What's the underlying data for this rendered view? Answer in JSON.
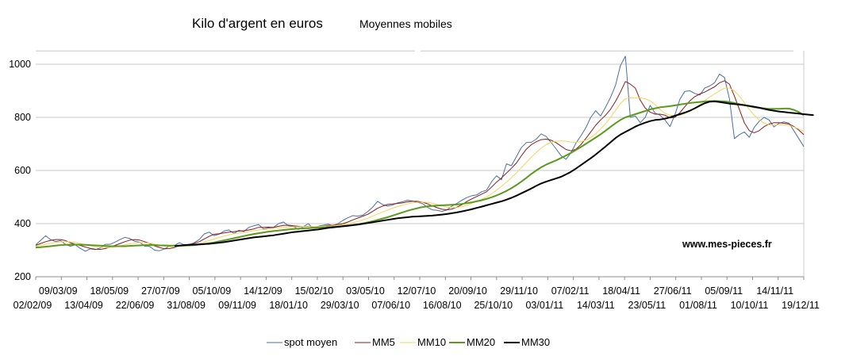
{
  "chart_data": {
    "type": "line",
    "title": "Kilo d'argent en euros",
    "subtitle": "Moyennes mobiles",
    "watermark": "www.mes-pieces.fr",
    "xlabel": "",
    "ylabel": "",
    "ylim": [
      200,
      1050
    ],
    "yticks": [
      200,
      400,
      600,
      800,
      1000
    ],
    "grid": true,
    "legend_position": "bottom",
    "x_ticks_row1": [
      "09/03/09",
      "18/05/09",
      "27/07/09",
      "05/10/09",
      "14/12/09",
      "15/02/10",
      "03/05/10",
      "12/07/10",
      "20/09/10",
      "29/11/10",
      "07/02/11",
      "18/04/11",
      "27/06/11",
      "05/09/11",
      "14/11/11"
    ],
    "x_ticks_row2": [
      "02/02/09",
      "13/04/09",
      "22/06/09",
      "31/08/09",
      "09/11/09",
      "18/01/10",
      "29/03/10",
      "07/06/10",
      "16/08/10",
      "25/10/10",
      "03/01/11",
      "14/03/11",
      "23/05/11",
      "01/08/11",
      "10/10/11",
      "19/12/11"
    ],
    "series": [
      {
        "name": "spot moyen",
        "color": "#4a6fa5",
        "values": [
          320,
          337,
          354,
          340,
          332,
          336,
          322,
          315,
          320,
          307,
          296,
          305,
          302,
          308,
          322,
          322,
          330,
          340,
          348,
          344,
          333,
          330,
          315,
          314,
          300,
          298,
          305,
          315,
          318,
          328,
          320,
          318,
          328,
          340,
          361,
          368,
          355,
          360,
          372,
          376,
          363,
          375,
          370,
          386,
          392,
          396,
          380,
          384,
          386,
          400,
          406,
          392,
          390,
          378,
          388,
          400,
          382,
          390,
          394,
          398,
          392,
          400,
          412,
          422,
          430,
          428,
          432,
          445,
          462,
          484,
          472,
          466,
          470,
          478,
          482,
          488,
          485,
          480,
          476,
          462,
          452,
          450,
          446,
          452,
          466,
          476,
          488,
          498,
          505,
          508,
          520,
          526,
          558,
          580,
          565,
          625,
          618,
          652,
          686,
          705,
          706,
          718,
          738,
          728,
          706,
          682,
          656,
          642,
          666,
          702,
          730,
          760,
          800,
          825,
          805,
          838,
          875,
          920,
          995,
          1030,
          800,
          805,
          780,
          800,
          845,
          816,
          808,
          790,
          765,
          810,
          868,
          898,
          900,
          890,
          884,
          910,
          918,
          930,
          963,
          950,
          870,
          720,
          735,
          745,
          725,
          762,
          785,
          800,
          790,
          764,
          778,
          783,
          778,
          750,
          720,
          690
        ]
      },
      {
        "name": "MM5",
        "color": "#8b1a1a",
        "values": [
          318,
          325,
          332,
          337,
          340,
          340,
          336,
          328,
          322,
          318,
          312,
          307,
          304,
          303,
          306,
          312,
          318,
          325,
          332,
          338,
          340,
          338,
          332,
          325,
          316,
          310,
          305,
          306,
          310,
          316,
          320,
          322,
          326,
          332,
          342,
          352,
          360,
          362,
          365,
          368,
          370,
          372,
          373,
          376,
          380,
          386,
          386,
          387,
          386,
          390,
          393,
          394,
          392,
          390,
          388,
          390,
          388,
          389,
          390,
          393,
          394,
          396,
          400,
          406,
          414,
          421,
          428,
          435,
          446,
          458,
          466,
          472,
          474,
          476,
          478,
          482,
          484,
          484,
          481,
          475,
          467,
          460,
          454,
          452,
          455,
          462,
          471,
          483,
          493,
          502,
          511,
          520,
          538,
          556,
          572,
          590,
          608,
          628,
          655,
          680,
          697,
          708,
          716,
          718,
          714,
          705,
          692,
          679,
          674,
          680,
          697,
          720,
          745,
          770,
          790,
          808,
          830,
          860,
          895,
          935,
          925,
          910,
          865,
          835,
          820,
          812,
          812,
          808,
          798,
          800,
          818,
          840,
          862,
          878,
          888,
          895,
          905,
          915,
          930,
          938,
          925,
          880,
          830,
          780,
          750,
          742,
          750,
          765,
          775,
          780,
          780,
          778,
          775,
          766,
          752,
          735
        ]
      },
      {
        "name": "MM10",
        "color": "#f5d35a",
        "values": [
          315,
          318,
          322,
          326,
          329,
          331,
          332,
          331,
          329,
          325,
          321,
          317,
          313,
          311,
          310,
          310,
          312,
          316,
          320,
          324,
          327,
          329,
          328,
          326,
          323,
          319,
          315,
          313,
          312,
          314,
          316,
          318,
          320,
          324,
          330,
          336,
          342,
          348,
          353,
          358,
          362,
          365,
          367,
          370,
          373,
          376,
          378,
          380,
          382,
          384,
          386,
          387,
          388,
          388,
          388,
          389,
          389,
          389,
          390,
          391,
          392,
          394,
          396,
          399,
          403,
          408,
          414,
          420,
          428,
          436,
          444,
          451,
          458,
          464,
          469,
          474,
          478,
          480,
          481,
          480,
          477,
          472,
          467,
          462,
          460,
          461,
          464,
          469,
          476,
          484,
          492,
          500,
          512,
          526,
          540,
          556,
          572,
          590,
          610,
          630,
          650,
          668,
          684,
          697,
          706,
          710,
          711,
          710,
          707,
          706,
          708,
          714,
          724,
          738,
          756,
          776,
          800,
          826,
          852,
          870,
          874,
          874,
          874,
          870,
          862,
          848,
          830,
          815,
          808,
          806,
          808,
          814,
          822,
          834,
          848,
          862,
          876,
          888,
          900,
          910,
          910,
          900,
          880,
          855,
          830,
          808,
          790,
          778,
          772,
          770,
          772,
          772,
          770,
          764,
          756,
          748
        ]
      },
      {
        "name": "MM20",
        "color": "#5a9a1e",
        "values": [
          310,
          311,
          313,
          315,
          317,
          319,
          320,
          321,
          321,
          321,
          320,
          319,
          318,
          317,
          316,
          315,
          315,
          315,
          315,
          316,
          317,
          318,
          319,
          319,
          319,
          318,
          318,
          317,
          317,
          317,
          317,
          318,
          319,
          321,
          323,
          326,
          329,
          333,
          337,
          341,
          345,
          349,
          353,
          357,
          361,
          364,
          367,
          370,
          372,
          374,
          376,
          378,
          380,
          381,
          382,
          383,
          384,
          385,
          386,
          387,
          388,
          389,
          391,
          393,
          395,
          398,
          401,
          405,
          409,
          414,
          419,
          424,
          430,
          436,
          442,
          448,
          453,
          458,
          462,
          465,
          467,
          468,
          469,
          470,
          471,
          472,
          474,
          477,
          480,
          484,
          488,
          493,
          499,
          506,
          514,
          523,
          533,
          545,
          558,
          572,
          587,
          600,
          612,
          622,
          630,
          638,
          647,
          656,
          666,
          677,
          688,
          700,
          712,
          724,
          736,
          750,
          764,
          778,
          790,
          800,
          806,
          812,
          818,
          824,
          830,
          834,
          838,
          840,
          842,
          845,
          848,
          851,
          854,
          856,
          858,
          860,
          861,
          862,
          861,
          860,
          858,
          854,
          850,
          846,
          842,
          838,
          836,
          834,
          832,
          832,
          832,
          833,
          833,
          828,
          820,
          808
        ]
      },
      {
        "name": "MM30",
        "color": "#000000",
        "values": [
          null,
          null,
          null,
          null,
          null,
          null,
          null,
          null,
          null,
          null,
          null,
          null,
          null,
          null,
          null,
          null,
          null,
          null,
          null,
          null,
          null,
          null,
          null,
          null,
          null,
          null,
          null,
          null,
          315,
          317,
          319,
          320,
          321,
          322,
          323,
          324,
          326,
          328,
          330,
          333,
          336,
          339,
          342,
          345,
          348,
          350,
          352,
          354,
          356,
          359,
          362,
          365,
          368,
          370,
          372,
          374,
          376,
          378,
          381,
          384,
          386,
          388,
          390,
          392,
          394,
          396,
          399,
          402,
          405,
          408,
          411,
          414,
          417,
          420,
          422,
          424,
          426,
          427,
          428,
          429,
          430,
          432,
          434,
          436,
          439,
          442,
          446,
          450,
          454,
          459,
          464,
          469,
          474,
          479,
          484,
          490,
          497,
          505,
          514,
          523,
          532,
          542,
          551,
          558,
          564,
          570,
          576,
          585,
          595,
          607,
          620,
          633,
          646,
          660,
          675,
          690,
          706,
          722,
          735,
          745,
          755,
          765,
          773,
          780,
          786,
          790,
          792,
          795,
          800,
          806,
          812,
          818,
          825,
          834,
          844,
          853,
          859,
          860,
          858,
          855,
          852,
          850,
          848,
          846,
          843,
          840,
          836,
          832,
          828,
          825,
          822,
          820,
          818,
          816,
          814,
          812,
          810,
          808
        ]
      }
    ]
  }
}
